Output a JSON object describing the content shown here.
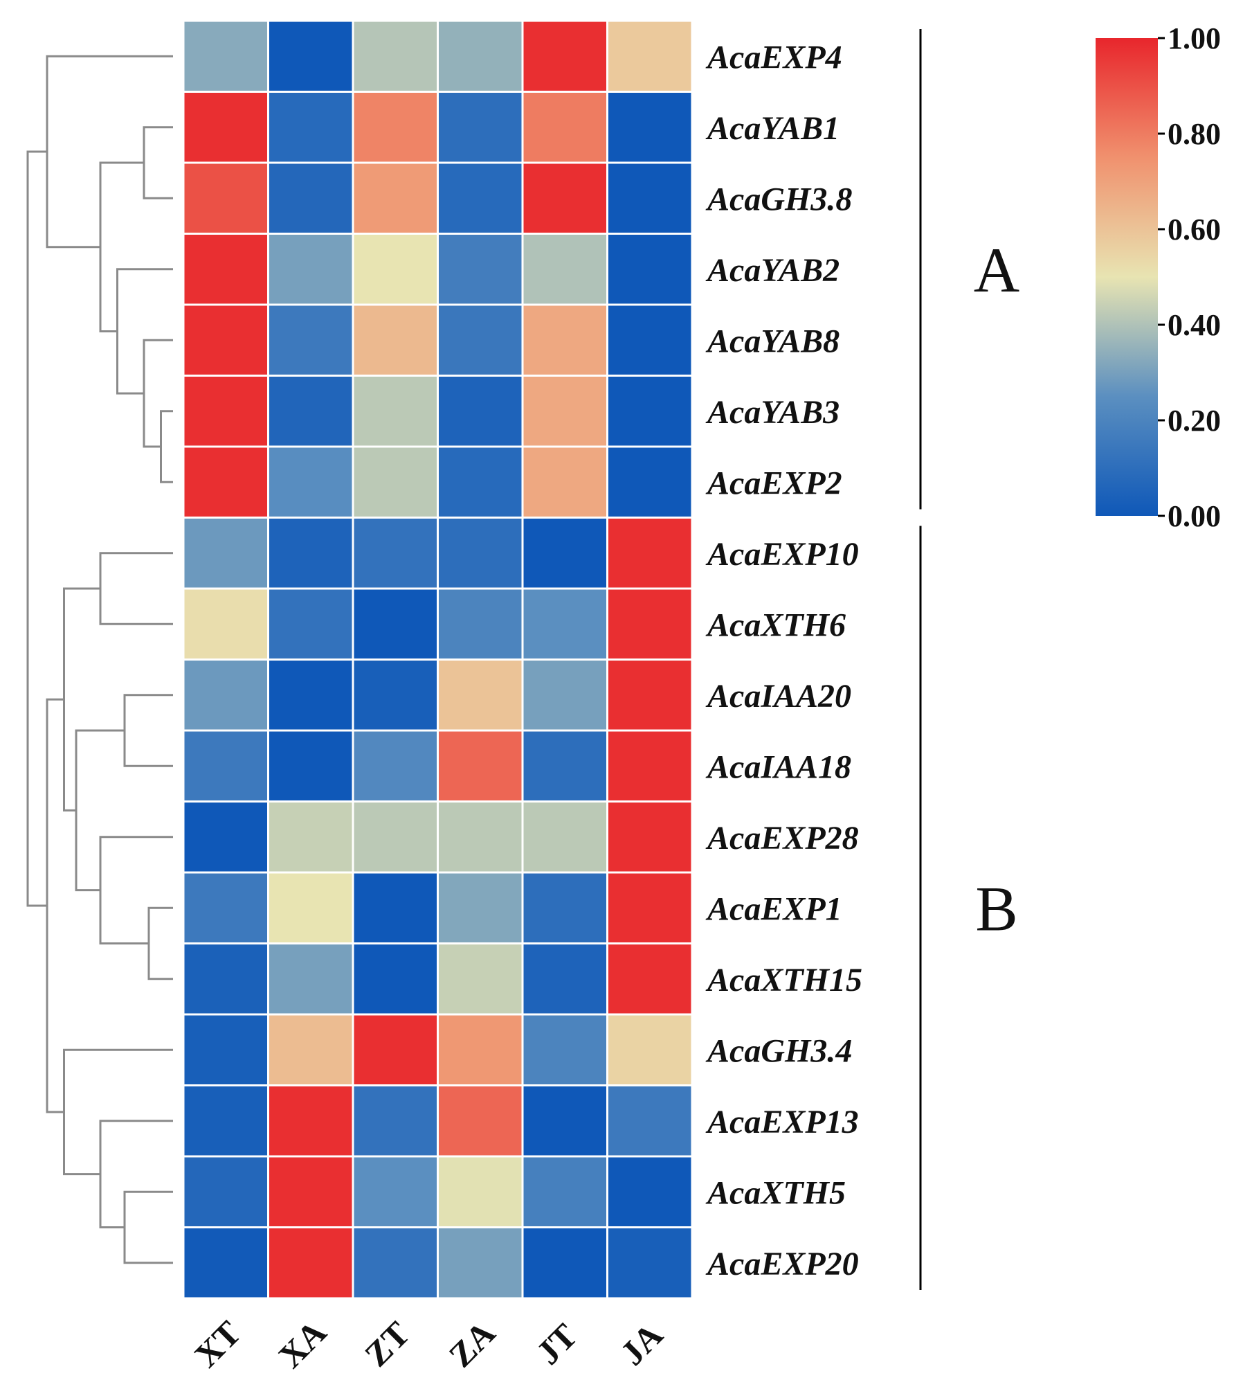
{
  "chart_data": {
    "type": "heatmap",
    "title": "",
    "columns": [
      "XT",
      "XA",
      "ZT",
      "ZA",
      "JT",
      "JA"
    ],
    "rows": [
      {
        "gene": "AcaEXP4",
        "values": [
          0.33,
          0.0,
          0.41,
          0.35,
          0.98,
          0.58
        ]
      },
      {
        "gene": "AcaYAB1",
        "values": [
          0.98,
          0.08,
          0.78,
          0.1,
          0.8,
          0.0
        ]
      },
      {
        "gene": "AcaGH3.8",
        "values": [
          0.9,
          0.07,
          0.72,
          0.08,
          0.98,
          0.0
        ]
      },
      {
        "gene": "AcaYAB2",
        "values": [
          0.98,
          0.3,
          0.5,
          0.17,
          0.4,
          0.0
        ]
      },
      {
        "gene": "AcaYAB8",
        "values": [
          0.98,
          0.15,
          0.63,
          0.14,
          0.68,
          0.0
        ]
      },
      {
        "gene": "AcaYAB3",
        "values": [
          0.98,
          0.06,
          0.42,
          0.05,
          0.68,
          0.0
        ]
      },
      {
        "gene": "AcaEXP2",
        "values": [
          0.98,
          0.24,
          0.42,
          0.08,
          0.68,
          0.0
        ]
      },
      {
        "gene": "AcaEXP10",
        "values": [
          0.28,
          0.05,
          0.12,
          0.1,
          0.0,
          0.98
        ]
      },
      {
        "gene": "AcaXTH6",
        "values": [
          0.52,
          0.12,
          0.0,
          0.2,
          0.25,
          0.98
        ]
      },
      {
        "gene": "AcaIAA20",
        "values": [
          0.28,
          0.0,
          0.03,
          0.6,
          0.3,
          0.98
        ]
      },
      {
        "gene": "AcaIAA18",
        "values": [
          0.15,
          0.0,
          0.22,
          0.85,
          0.1,
          0.98
        ]
      },
      {
        "gene": "AcaEXP28",
        "values": [
          0.0,
          0.44,
          0.42,
          0.42,
          0.42,
          0.98
        ]
      },
      {
        "gene": "AcaEXP1",
        "values": [
          0.15,
          0.5,
          0.0,
          0.32,
          0.1,
          0.98
        ]
      },
      {
        "gene": "AcaXTH15",
        "values": [
          0.04,
          0.3,
          0.0,
          0.44,
          0.05,
          0.98
        ]
      },
      {
        "gene": "AcaGH3.4",
        "values": [
          0.03,
          0.62,
          0.98,
          0.73,
          0.2,
          0.55
        ]
      },
      {
        "gene": "AcaEXP13",
        "values": [
          0.03,
          0.98,
          0.12,
          0.85,
          0.0,
          0.15
        ]
      },
      {
        "gene": "AcaXTH5",
        "values": [
          0.07,
          0.98,
          0.25,
          0.49,
          0.18,
          0.0
        ]
      },
      {
        "gene": "AcaEXP20",
        "values": [
          0.01,
          0.98,
          0.12,
          0.3,
          0.0,
          0.03
        ]
      }
    ],
    "clusters": [
      {
        "label": "A",
        "first_row": 0,
        "last_row": 6
      },
      {
        "label": "B",
        "first_row": 7,
        "last_row": 17
      }
    ],
    "dendrogram": [
      [
        1,
        2,
        0.12
      ],
      [
        5,
        6,
        0.05
      ],
      [
        4,
        19,
        0.12
      ],
      [
        3,
        20,
        0.23
      ],
      [
        18,
        21,
        0.3
      ],
      [
        0,
        22,
        0.52
      ],
      [
        7,
        8,
        0.3
      ],
      [
        9,
        10,
        0.2
      ],
      [
        12,
        13,
        0.1
      ],
      [
        11,
        26,
        0.3
      ],
      [
        25,
        27,
        0.4
      ],
      [
        24,
        28,
        0.45
      ],
      [
        16,
        17,
        0.2
      ],
      [
        15,
        30,
        0.3
      ],
      [
        14,
        31,
        0.45
      ],
      [
        29,
        32,
        0.52
      ],
      [
        23,
        33,
        0.6
      ]
    ],
    "colorbar": {
      "range": [
        0,
        1
      ],
      "ticks": [
        "0.00",
        "0.20",
        "0.40",
        "0.60",
        "0.80",
        "1.00"
      ],
      "colormap": [
        "#0f58b8",
        "#e8e4b2",
        "#e8262c"
      ]
    }
  }
}
